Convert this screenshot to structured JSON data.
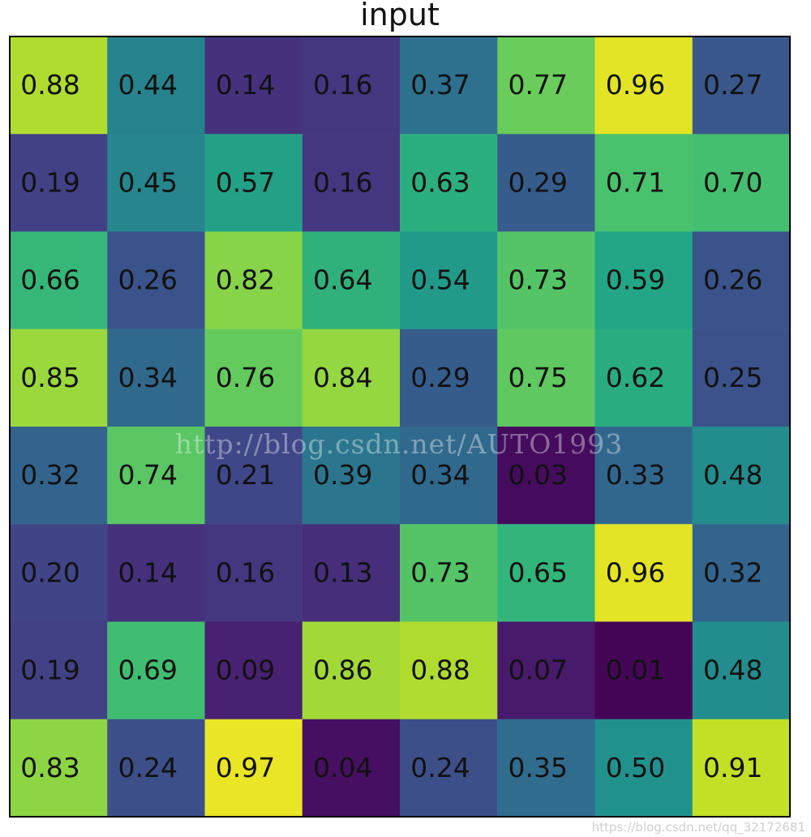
{
  "chart_data": {
    "type": "heatmap",
    "title": "input",
    "rows": 8,
    "cols": 8,
    "values": [
      [
        "0.88",
        "0.44",
        "0.14",
        "0.16",
        "0.37",
        "0.77",
        "0.96",
        "0.27"
      ],
      [
        "0.19",
        "0.45",
        "0.57",
        "0.16",
        "0.63",
        "0.29",
        "0.71",
        "0.70"
      ],
      [
        "0.66",
        "0.26",
        "0.82",
        "0.64",
        "0.54",
        "0.73",
        "0.59",
        "0.26"
      ],
      [
        "0.85",
        "0.34",
        "0.76",
        "0.84",
        "0.29",
        "0.75",
        "0.62",
        "0.25"
      ],
      [
        "0.32",
        "0.74",
        "0.21",
        "0.39",
        "0.34",
        "0.03",
        "0.33",
        "0.48"
      ],
      [
        "0.20",
        "0.14",
        "0.16",
        "0.13",
        "0.73",
        "0.65",
        "0.96",
        "0.32"
      ],
      [
        "0.19",
        "0.69",
        "0.09",
        "0.86",
        "0.88",
        "0.07",
        "0.01",
        "0.48"
      ],
      [
        "0.83",
        "0.24",
        "0.97",
        "0.04",
        "0.24",
        "0.35",
        "0.50",
        "0.91"
      ]
    ],
    "colormap": "viridis",
    "value_range": [
      0,
      1
    ],
    "grid": false,
    "legend": "none"
  },
  "watermark": {
    "center_text": "http://blog.csdn.net/AUTO1993",
    "corner_text": "https://blog.csdn.net/qq_32172681"
  },
  "colors": {
    "frame": "#000000",
    "text": "#111111",
    "background": "#ffffff"
  }
}
